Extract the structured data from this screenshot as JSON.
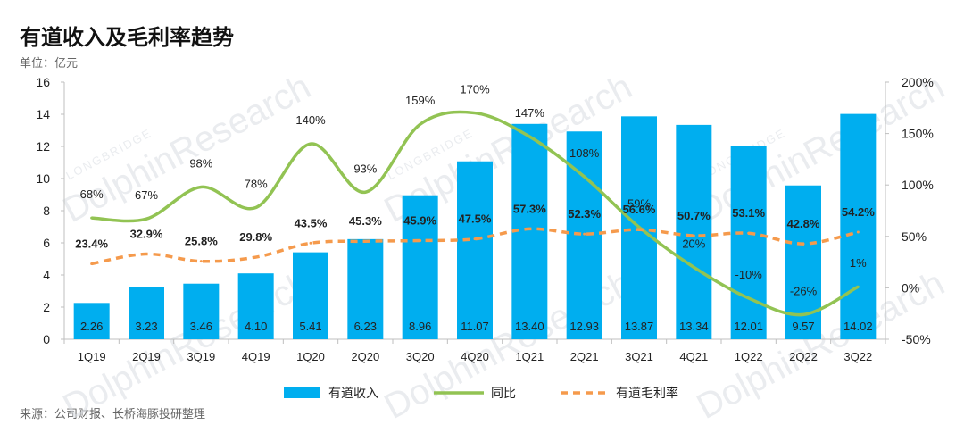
{
  "header": {
    "title": "有道收入及毛利率趋势",
    "unit": "单位：亿元"
  },
  "footer": {
    "source": "来源：公司财报、长桥海豚投研整理"
  },
  "watermark": {
    "brand_small": "LONGBRIDGE",
    "brand": "DolphinResearch"
  },
  "colors": {
    "bar": "#00aeef",
    "yoy_line": "#92c353",
    "margin_line": "#f59a4c",
    "axis": "#bfbfbf",
    "text": "#222222"
  },
  "chart_data": {
    "type": "bar",
    "categories": [
      "1Q19",
      "2Q19",
      "3Q19",
      "4Q19",
      "1Q20",
      "2Q20",
      "3Q20",
      "4Q20",
      "1Q21",
      "2Q21",
      "3Q21",
      "4Q21",
      "1Q22",
      "2Q22",
      "3Q22"
    ],
    "series": [
      {
        "name": "有道收入",
        "type": "bar",
        "axis": "left",
        "values": [
          2.26,
          3.23,
          3.46,
          4.1,
          5.41,
          6.23,
          8.96,
          11.07,
          13.4,
          12.93,
          13.87,
          13.34,
          12.01,
          9.57,
          14.02
        ],
        "labels": [
          "2.26",
          "3.23",
          "3.46",
          "4.10",
          "5.41",
          "6.23",
          "8.96",
          "11.07",
          "13.40",
          "12.93",
          "13.87",
          "13.34",
          "12.01",
          "9.57",
          "14.02"
        ]
      },
      {
        "name": "同比",
        "type": "line",
        "axis": "right",
        "values": [
          68,
          67,
          98,
          78,
          140,
          93,
          159,
          170,
          147,
          108,
          59,
          20,
          -10,
          -26,
          1
        ],
        "labels": [
          "68%",
          "67%",
          "98%",
          "78%",
          "140%",
          "93%",
          "159%",
          "170%",
          "147%",
          "108%",
          "59%",
          "20%",
          "-10%",
          "-26%",
          "1%"
        ]
      },
      {
        "name": "有道毛利率",
        "type": "line",
        "axis": "right",
        "values": [
          23.4,
          32.9,
          25.8,
          29.8,
          43.5,
          45.3,
          45.9,
          47.5,
          57.3,
          52.3,
          56.6,
          50.7,
          53.1,
          42.8,
          54.2
        ],
        "labels": [
          "23.4%",
          "32.9%",
          "25.8%",
          "29.8%",
          "43.5%",
          "45.3%",
          "45.9%",
          "47.5%",
          "57.3%",
          "52.3%",
          "56.6%",
          "50.7%",
          "53.1%",
          "42.8%",
          "54.2%"
        ]
      }
    ],
    "y_left": {
      "ylim": [
        0,
        16
      ],
      "ticks": [
        "0",
        "2",
        "4",
        "6",
        "8",
        "10",
        "12",
        "14",
        "16"
      ]
    },
    "y_right": {
      "ylim": [
        -50,
        200
      ],
      "ticks": [
        "-50%",
        "0%",
        "50%",
        "100%",
        "150%",
        "200%"
      ]
    },
    "grid": false,
    "legend_position": "bottom"
  }
}
